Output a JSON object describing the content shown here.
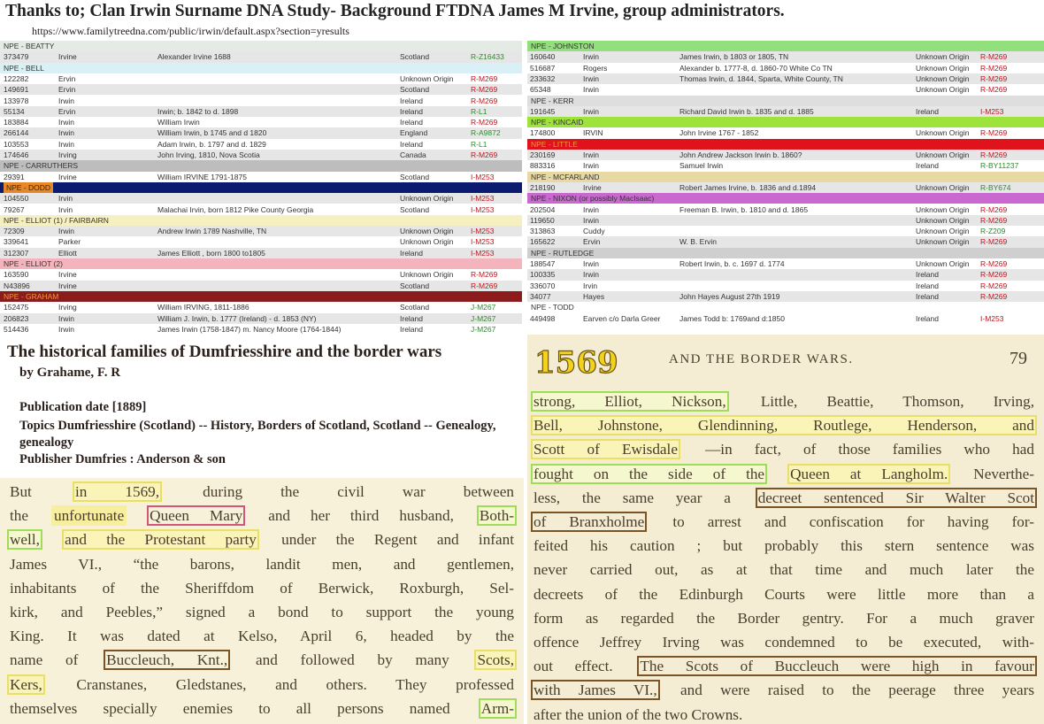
{
  "header": {
    "title": "Thanks to; Clan Irwin Surname DNA Study- Background FTDNA James M Irvine, group administrators.",
    "url": "https://www.familytreedna.com/public/irwin/default.aspx?section=yresults"
  },
  "tables": [
    {
      "groups": [
        {
          "name": "NPE - BEATTY",
          "color": "#e4ebe4",
          "rows": [
            [
              "373479",
              "Irvine",
              "Alexander Irvine 1688",
              "Scotland",
              "R-Z16433"
            ]
          ]
        },
        {
          "name": "NPE - BELL",
          "color": "#d9f1f6",
          "rows": [
            [
              "122282",
              "Ervin",
              "",
              "Unknown Origin",
              "R-M269"
            ],
            [
              "149691",
              "Ervin",
              "",
              "Scotland",
              "R-M269"
            ],
            [
              "133978",
              "Irwin",
              "",
              "Ireland",
              "R-M269"
            ],
            [
              "55134",
              "Ervin",
              "Irwin; b. 1842 to d. 1898",
              "Ireland",
              "R-L1"
            ],
            [
              "183884",
              "Irwin",
              "William Irwin",
              "Ireland",
              "R-M269"
            ],
            [
              "266144",
              "Irwin",
              "William Irwin, b 1745 and d 1820",
              "England",
              "R-A9872"
            ],
            [
              "103553",
              "Irwin",
              "Adam Irwin, b. 1797 and d. 1829",
              "Ireland",
              "R-L1"
            ],
            [
              "174646",
              "Irving",
              "John Irving, 1810, Nova Scotia",
              "Canada",
              "R-M269"
            ]
          ]
        },
        {
          "name": "NPE - CARRUTHERS",
          "color": "#bdbdbd",
          "rows": [
            [
              "29391",
              "Irvine",
              "William IRVINE 1791-1875",
              "Scotland",
              "I-M253"
            ]
          ]
        },
        {
          "name": "NPE - DODD",
          "color": "#0b1b6f",
          "rows": [
            [
              "104550",
              "Irvin",
              "",
              "Unknown Origin",
              "I-M253"
            ],
            [
              "79267",
              "Irvin",
              "Malachai Irvin, born 1812 Pike County Georgia",
              "Scotland",
              "I-M253"
            ]
          ]
        },
        {
          "name": "NPE - ELLIOT (1) / FAIRBAIRN",
          "color": "#f6efc0",
          "rows": [
            [
              "72309",
              "Irwin",
              "Andrew Irwin 1789 Nashville, TN",
              "Unknown Origin",
              "I-M253"
            ],
            [
              "339641",
              "Parker",
              "",
              "Unknown Origin",
              "I-M253"
            ],
            [
              "312307",
              "Elliott",
              "James Elliott , born 1800 to1805",
              "Ireland",
              "I-M253"
            ]
          ]
        },
        {
          "name": "NPE - ELLIOT (2)",
          "color": "#f3b4be",
          "rows": [
            [
              "163590",
              "Irvine",
              "",
              "Unknown Origin",
              "R-M269"
            ],
            [
              "N43896",
              "Irvine",
              "",
              "Scotland",
              "R-M269"
            ]
          ]
        },
        {
          "name": "NPE - GRAHAM",
          "color": "#8c1c1c",
          "rows": [
            [
              "152475",
              "Irving",
              "William IRVING, 1811-1886",
              "Scotland",
              "J-M267"
            ],
            [
              "206823",
              "Irwin",
              "William J. Irwin, b. 1777 (Ireland) - d. 1853 (NY)",
              "Ireland",
              "J-M267"
            ],
            [
              "514436",
              "Irwin",
              "James Irwin (1758-1847) m. Nancy Moore (1764-1844)",
              "Ireland",
              "J-M267"
            ]
          ]
        }
      ]
    },
    {
      "groups": [
        {
          "name": "NPE - JOHNSTON",
          "color": "#92e07c",
          "rows": [
            [
              "160640",
              "Irwin",
              "James Irwin, b 1803 or 1805, TN",
              "Unknown Origin",
              "R-M269"
            ],
            [
              "516687",
              "Rogers",
              "Alexander b. 1777-8, d. 1860-70 White Co TN",
              "Unknown Origin",
              "R-M269"
            ],
            [
              "233632",
              "Irwin",
              "Thomas Irwin, d. 1844, Sparta, White County, TN",
              "Unknown Origin",
              "R-M269"
            ],
            [
              "65348",
              "Irwin",
              "",
              "Unknown Origin",
              "R-M269"
            ]
          ]
        },
        {
          "name": "NPE - KERR",
          "color": "#dedede",
          "rows": [
            [
              "191645",
              "Irwin",
              "Richard David Irwin b. 1835 and d. 1885",
              "Ireland",
              "I-M253"
            ]
          ]
        },
        {
          "name": "NPE - KINCAID",
          "color": "#9ee33c",
          "rows": [
            [
              "174800",
              "IRVIN",
              "John Irvine 1767 - 1852",
              "Unknown Origin",
              "R-M269"
            ]
          ]
        },
        {
          "name": "NPE - LITTLE",
          "color": "#e0121c",
          "rows": [
            [
              "230169",
              "Irwin",
              "John Andrew Jackson Irwin b. 1860?",
              "Unknown Origin",
              "R-M269"
            ],
            [
              "883316",
              "Irwin",
              "Samuel Irwin",
              "Ireland",
              "R-BY11237"
            ]
          ]
        },
        {
          "name": "NPE - MCFARLAND",
          "color": "#e8d8a4",
          "rows": [
            [
              "218190",
              "Irvine",
              "Robert James Irvine, b. 1836 and d.1894",
              "Unknown Origin",
              "R-BY674"
            ]
          ]
        },
        {
          "name": "NPE - NIXON (or possibly MacIsaac)",
          "color": "#c968cf",
          "rows": [
            [
              "202504",
              "Irwin",
              "Freeman B. Irwin, b. 1810 and d. 1865",
              "Unknown Origin",
              "R-M269"
            ],
            [
              "119650",
              "Irwin",
              "",
              "Unknown Origin",
              "R-M269"
            ],
            [
              "313863",
              "Cuddy",
              "",
              "Unknown Origin",
              "R-Z209"
            ],
            [
              "165622",
              "Ervin",
              "W. B. Ervin",
              "Unknown Origin",
              "R-M269"
            ]
          ]
        },
        {
          "name": "NPE - RUTLEDGE",
          "color": "#cfcfcf",
          "rows": [
            [
              "188547",
              "Irwin",
              "Robert Irwin, b. c. 1697 d. 1774",
              "Unknown Origin",
              "R-M269"
            ],
            [
              "100335",
              "Irwin",
              "",
              "Ireland",
              "R-M269"
            ],
            [
              "336070",
              "Irvin",
              "",
              "Ireland",
              "R-M269"
            ],
            [
              "34077",
              "Hayes",
              "John Hayes August 27th 1919",
              "Ireland",
              "R-M269"
            ]
          ]
        },
        {
          "name": "NPE - TODD",
          "color": "#ffffff",
          "rows": [
            [
              "449498",
              "Earven c/o Darla Greer",
              "James Todd b: 1769and d:1850",
              "Ireland",
              "I-M253"
            ]
          ]
        }
      ]
    }
  ],
  "book_info": {
    "title": "The historical families of Dumfriesshire and the border wars",
    "author": "by Grahame, F. R",
    "publication_date": "Publication date [1889]",
    "topics": "Topics Dumfriesshire (Scotland) -- History, Borders of Scotland, Scotland -- Genealogy, genealogy",
    "publisher": "Publisher Dumfries : Anderson & son"
  },
  "left_page": {
    "lines": [
      [
        "But",
        "in 1569,",
        "during the civil war between"
      ],
      [
        "the",
        "unfortunate",
        "Queen Mary",
        "and her third husband,",
        "Both-"
      ],
      [
        "well,",
        "and the Protestant party",
        "under the Regent and infant"
      ],
      [
        "James VI., “the barons, landit men, and gentlemen,"
      ],
      [
        "inhabitants of the Sheriffdom of Berwick, Roxburgh, Sel-"
      ],
      [
        "kirk, and Peebles,” signed a bond to support the young"
      ],
      [
        "King.  It was dated at Kelso, April 6, headed by the"
      ],
      [
        "name of",
        "Buccleuch, Knt.,",
        "and followed by many",
        "Scots,"
      ],
      [
        "Kers,",
        "Cranstanes, Gledstanes, and others.  They professed"
      ],
      [
        "themselves specially enemies to all persons named",
        "Arm-"
      ]
    ]
  },
  "right_page": {
    "year": "1569",
    "running_head": "AND THE BORDER WARS.",
    "page_number": "79",
    "lines": [
      [
        "strong, Elliot, Nickson,",
        "Little, Beattie, Thomson, Irving,"
      ],
      [
        "Bell, Johnstone, Glendinning, Routlege, Henderson, and"
      ],
      [
        "Scott of Ewisdale",
        "—in fact, of those families who had"
      ],
      [
        "fought on the side of the",
        "Queen at Langholm.",
        "Neverthe-"
      ],
      [
        "less, the same year a",
        "decreet sentenced Sir Walter Scot"
      ],
      [
        "of Branxholme",
        "to arrest and confiscation for having for-"
      ],
      [
        "feited his caution ; but probably this stern sentence was"
      ],
      [
        "never carried out, as at that time and much later the"
      ],
      [
        "decreets of the Edinburgh Courts were little more than a"
      ],
      [
        "form as regarded the Border gentry.  For a much graver"
      ],
      [
        "offence Jeffrey Irving was condemned to be executed, with-"
      ],
      [
        "out effect.",
        "The Scots of Buccleuch were high in favour"
      ],
      [
        "with James VI.,",
        "and were raised to the peerage three years"
      ],
      [
        "after the union of the two Crowns."
      ]
    ]
  }
}
